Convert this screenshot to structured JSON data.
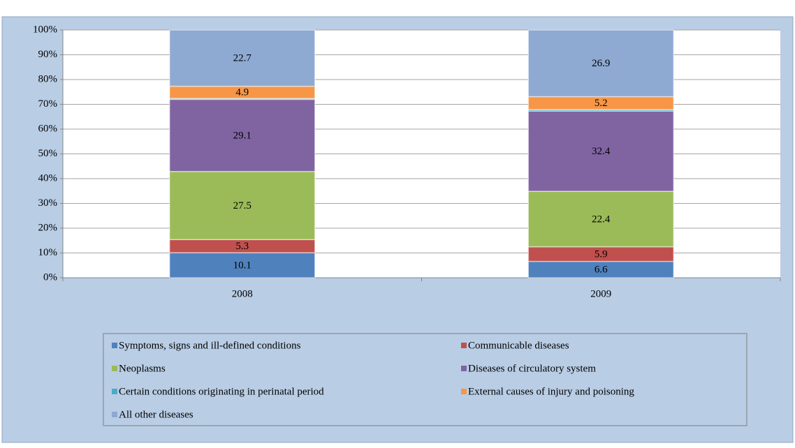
{
  "chart_data": {
    "type": "stacked_bar",
    "categories": [
      "2008",
      "2009"
    ],
    "series": [
      {
        "name": "Symptoms, signs and ill-defined conditions",
        "color": "#4f81bd",
        "values": [
          10.1,
          6.6
        ]
      },
      {
        "name": "Communicable diseases",
        "color": "#c0504d",
        "values": [
          5.3,
          5.9
        ]
      },
      {
        "name": "Neoplasms",
        "color": "#9bbb59",
        "values": [
          27.5,
          22.4
        ]
      },
      {
        "name": "Diseases of circulatory system",
        "color": "#8064a2",
        "values": [
          29.1,
          32.4
        ]
      },
      {
        "name": "Certain conditions originating in perinatal period",
        "color": "#4bacc6",
        "values": [
          0.4,
          0.6
        ]
      },
      {
        "name": "External causes of injury and poisoning",
        "color": "#f79646",
        "values": [
          4.9,
          5.2
        ]
      },
      {
        "name": "All other diseases",
        "color": "#8eaad2",
        "values": [
          22.7,
          26.9
        ]
      }
    ],
    "ylim": [
      0,
      100
    ],
    "yticks": [
      {
        "value": 0,
        "label": "0%"
      },
      {
        "value": 10,
        "label": "10%"
      },
      {
        "value": 20,
        "label": "20%"
      },
      {
        "value": 30,
        "label": "30%"
      },
      {
        "value": 40,
        "label": "40%"
      },
      {
        "value": 50,
        "label": "50%"
      },
      {
        "value": 60,
        "label": "60%"
      },
      {
        "value": 70,
        "label": "70%"
      },
      {
        "value": 80,
        "label": "80%"
      },
      {
        "value": 90,
        "label": "90%"
      },
      {
        "value": 100,
        "label": "100%"
      }
    ],
    "grid": true,
    "legend": "bottom"
  }
}
